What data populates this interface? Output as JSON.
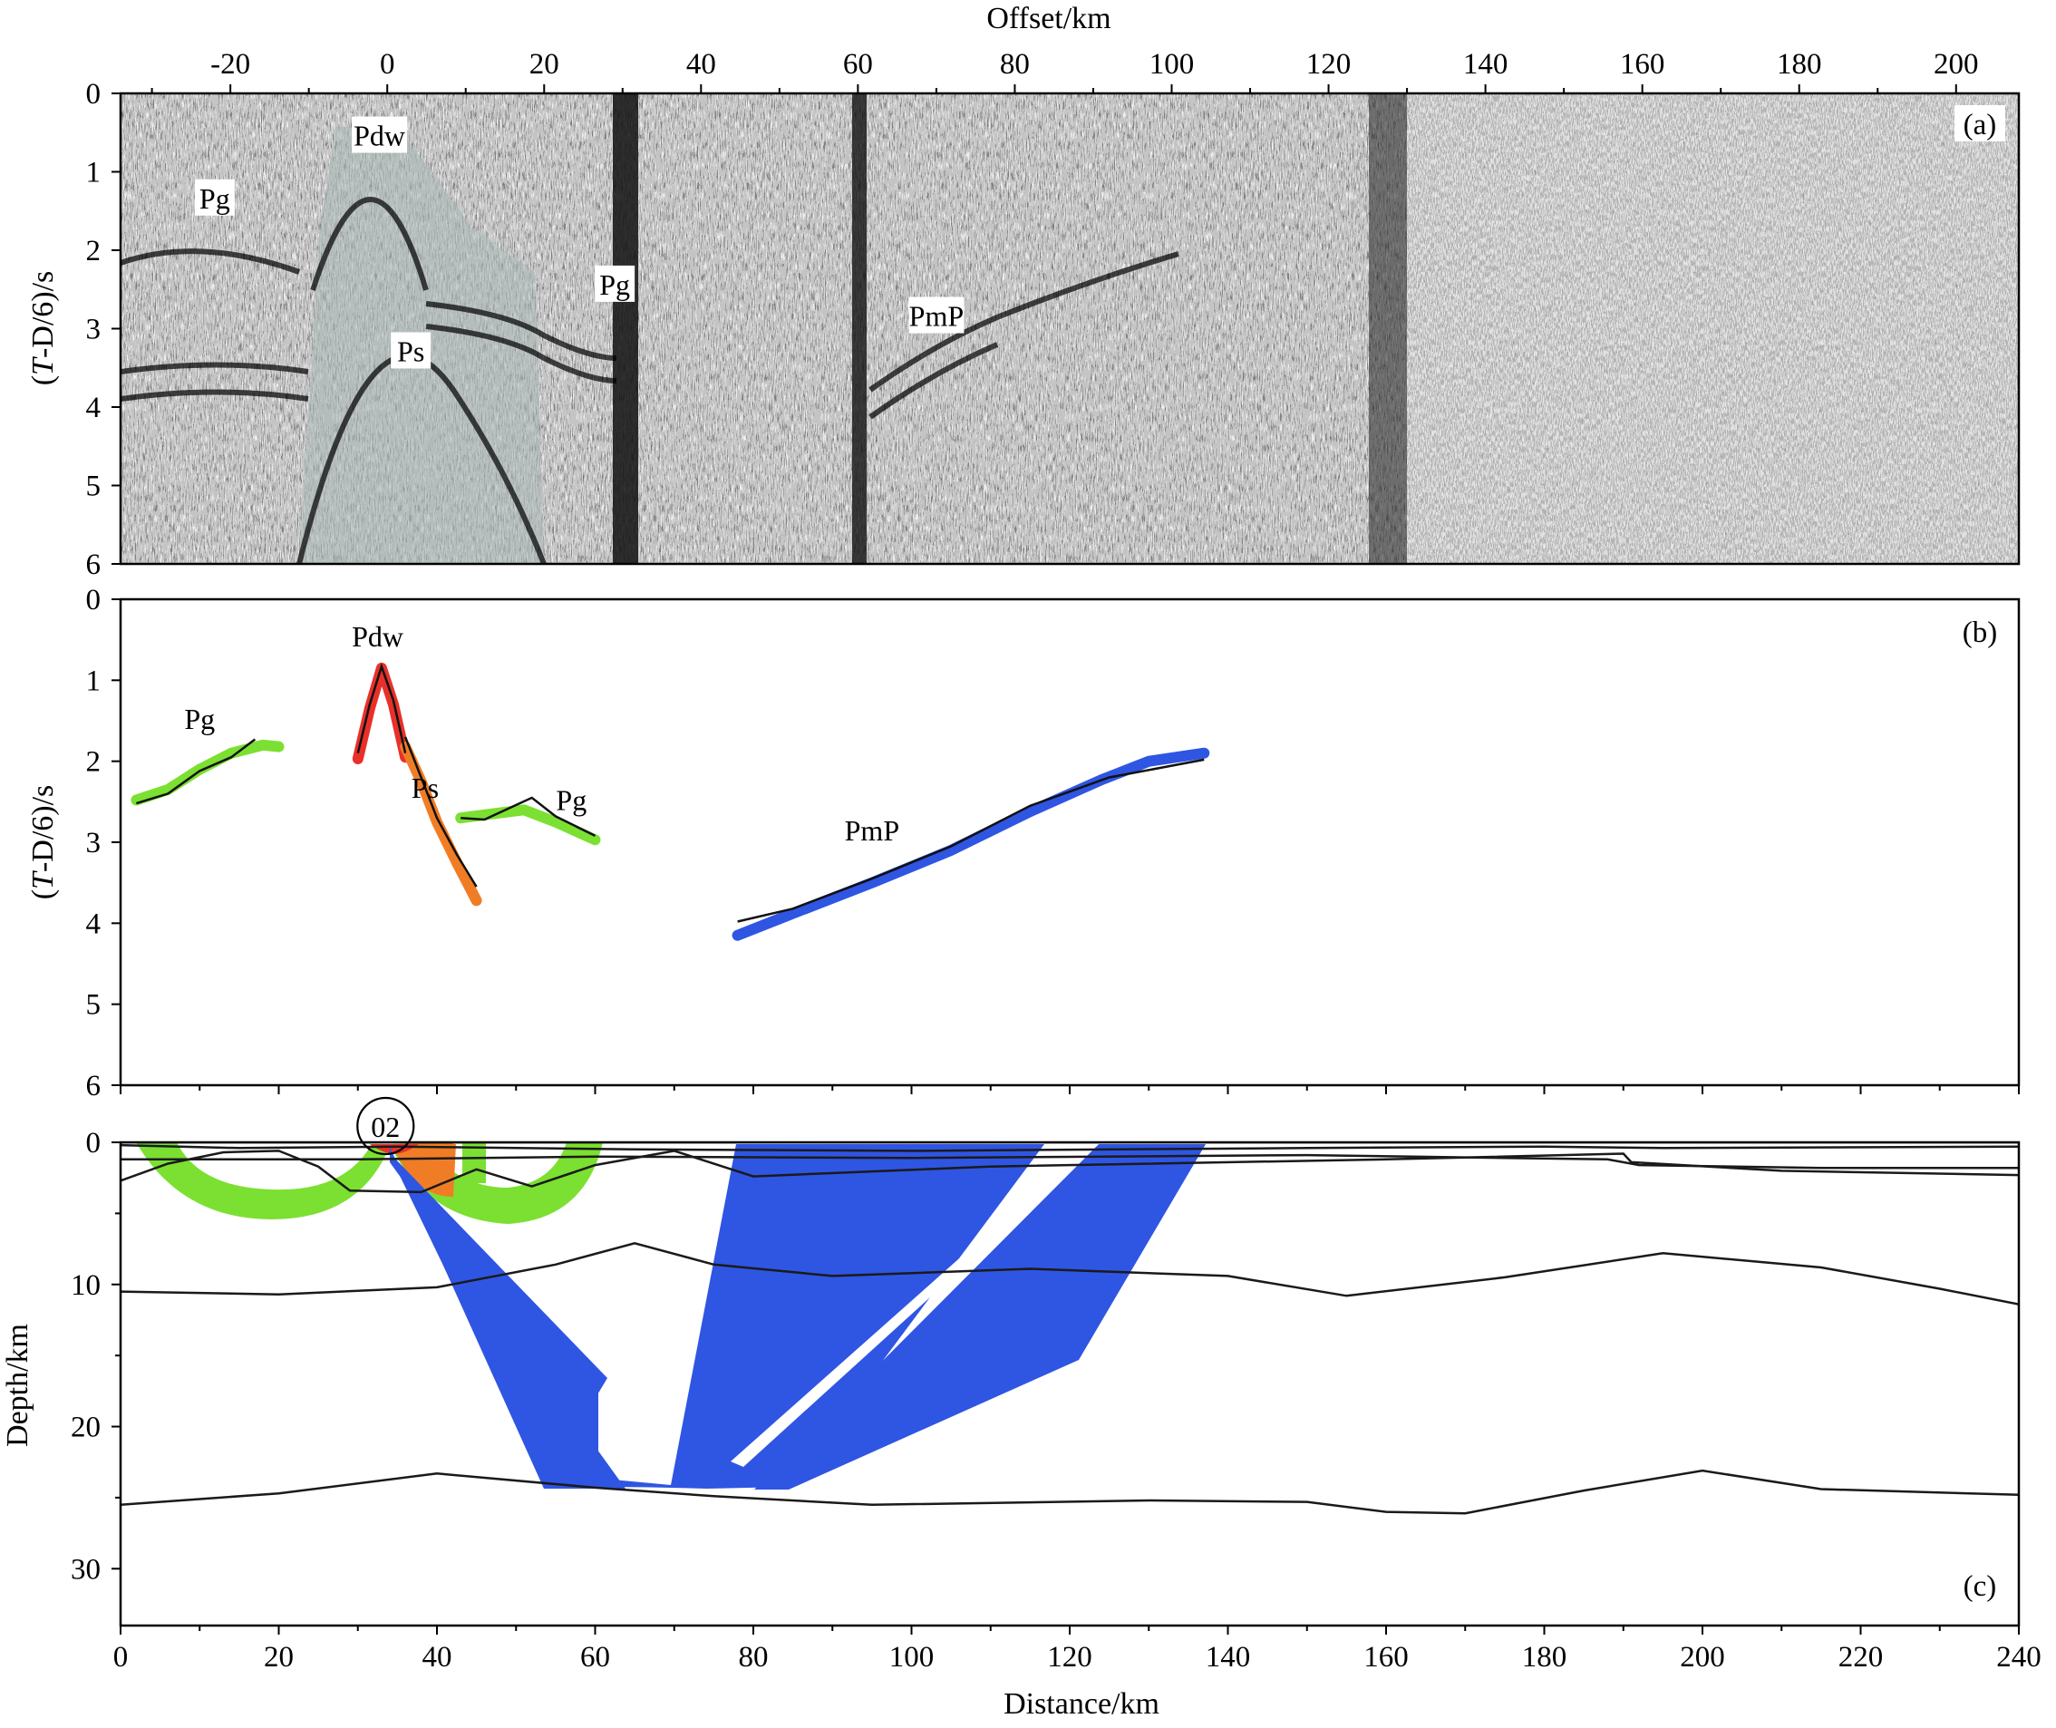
{
  "chart_data": [
    {
      "id": "a",
      "type": "heatmap",
      "panel_label": "(a)",
      "xlabel": "Offset/km",
      "ylabel_prefix": "(",
      "ylabel_italic": "T",
      "ylabel_suffix": "-D/6)/s",
      "xlim": [
        -34,
        208
      ],
      "ylim": [
        0,
        6
      ],
      "x_ticks": [
        -20,
        0,
        20,
        40,
        60,
        80,
        100,
        120,
        140,
        160,
        180,
        200
      ],
      "y_ticks": [
        0,
        1,
        2,
        3,
        4,
        5,
        6
      ],
      "phase_labels": [
        {
          "text": "Pdw",
          "x": -1,
          "t": 0.55
        },
        {
          "text": "Pg",
          "x": -22,
          "t": 1.35
        },
        {
          "text": "Ps",
          "x": 3,
          "t": 3.3
        },
        {
          "text": "Pg",
          "x": 29,
          "t": 2.45
        },
        {
          "text": "PmP",
          "x": 70,
          "t": 2.85
        }
      ]
    },
    {
      "id": "b",
      "type": "line",
      "panel_label": "(b)",
      "ylabel_prefix": "(",
      "ylabel_italic": "T",
      "ylabel_suffix": "-D/6)/s",
      "xlim": [
        0,
        240
      ],
      "ylim": [
        0,
        6
      ],
      "y_ticks": [
        0,
        1,
        2,
        3,
        4,
        5,
        6
      ],
      "colors": {
        "Pg": "#7be031",
        "Pdw": "#e8302a",
        "Ps": "#f07d25",
        "PmP": "#2f55e3",
        "calc": "#111111"
      },
      "series": [
        {
          "phase": "Pg",
          "points": [
            [
              2,
              2.48
            ],
            [
              6,
              2.35
            ],
            [
              10,
              2.1
            ],
            [
              14,
              1.9
            ],
            [
              18,
              1.8
            ],
            [
              20,
              1.82
            ]
          ]
        },
        {
          "phase": "Pg",
          "points": [
            [
              43,
              2.7
            ],
            [
              47,
              2.65
            ],
            [
              51,
              2.6
            ],
            [
              55,
              2.75
            ],
            [
              60,
              2.97
            ]
          ]
        },
        {
          "phase": "Pdw",
          "points": [
            [
              30,
              1.97
            ],
            [
              31.5,
              1.35
            ],
            [
              33,
              0.85
            ],
            [
              34.5,
              1.3
            ],
            [
              36,
              1.95
            ]
          ]
        },
        {
          "phase": "Ps",
          "points": [
            [
              36,
              1.82
            ],
            [
              38,
              2.25
            ],
            [
              40,
              2.75
            ],
            [
              42.5,
              3.25
            ],
            [
              45,
              3.72
            ]
          ]
        },
        {
          "phase": "PmP",
          "points": [
            [
              78,
              4.15
            ],
            [
              85,
              3.88
            ],
            [
              95,
              3.5
            ],
            [
              105,
              3.1
            ],
            [
              115,
              2.62
            ],
            [
              124,
              2.23
            ],
            [
              130,
              2.0
            ],
            [
              137,
              1.9
            ]
          ]
        }
      ],
      "calc_curves": [
        [
          [
            2,
            2.52
          ],
          [
            6,
            2.4
          ],
          [
            10,
            2.12
          ],
          [
            14,
            1.95
          ],
          [
            17,
            1.73
          ]
        ],
        [
          [
            30,
            1.9
          ],
          [
            31.5,
            1.3
          ],
          [
            33,
            0.83
          ],
          [
            34.5,
            1.25
          ],
          [
            36,
            1.9
          ]
        ],
        [
          [
            36,
            1.7
          ],
          [
            38,
            2.2
          ],
          [
            40,
            2.7
          ],
          [
            42.5,
            3.15
          ],
          [
            45,
            3.55
          ]
        ],
        [
          [
            43,
            2.7
          ],
          [
            46,
            2.72
          ],
          [
            52,
            2.45
          ],
          [
            55,
            2.68
          ],
          [
            60,
            2.92
          ]
        ],
        [
          [
            78,
            3.98
          ],
          [
            85,
            3.82
          ],
          [
            95,
            3.45
          ],
          [
            105,
            3.05
          ],
          [
            115,
            2.55
          ],
          [
            125,
            2.2
          ],
          [
            137,
            1.98
          ]
        ]
      ],
      "phase_labels": [
        {
          "text": "Pdw",
          "x": 32.5,
          "t": 0.58
        },
        {
          "text": "Pg",
          "x": 10,
          "t": 1.6
        },
        {
          "text": "Ps",
          "x": 38.5,
          "t": 2.45
        },
        {
          "text": "Pg",
          "x": 57,
          "t": 2.6
        },
        {
          "text": "PmP",
          "x": 95,
          "t": 2.98
        }
      ]
    },
    {
      "id": "c",
      "type": "line",
      "panel_label": "(c)",
      "xlabel": "Distance/km",
      "ylabel": "Depth/km",
      "xlim": [
        0,
        240
      ],
      "ylim": [
        0,
        34
      ],
      "x_ticks": [
        0,
        20,
        40,
        60,
        80,
        100,
        120,
        140,
        160,
        180,
        200,
        220,
        240
      ],
      "y_ticks": [
        0,
        10,
        20,
        30
      ],
      "station_label": "02",
      "station_x": 33.5,
      "colors": {
        "Pg": "#7be031",
        "Pdw": "#e8302a",
        "Ps": "#f07d25",
        "PmP": "#2f55e3",
        "boundary": "#1a1a1a"
      },
      "boundaries": [
        [
          [
            0,
            0.0
          ],
          [
            240,
            0.0
          ]
        ],
        [
          [
            0,
            0.2
          ],
          [
            15,
            0.4
          ],
          [
            35,
            0.3
          ],
          [
            65,
            0.5
          ],
          [
            100,
            0.6
          ],
          [
            150,
            0.4
          ],
          [
            180,
            0.3
          ],
          [
            195,
            0.4
          ],
          [
            240,
            0.3
          ]
        ],
        [
          [
            0,
            2.7
          ],
          [
            6,
            1.5
          ],
          [
            13,
            0.7
          ],
          [
            20,
            0.6
          ],
          [
            25,
            1.7
          ],
          [
            29,
            3.4
          ],
          [
            38,
            3.5
          ],
          [
            45,
            1.9
          ],
          [
            52,
            3.1
          ],
          [
            60,
            1.6
          ],
          [
            70,
            0.6
          ],
          [
            80,
            2.4
          ],
          [
            110,
            1.7
          ],
          [
            160,
            1.2
          ],
          [
            190,
            0.8
          ],
          [
            191,
            1.4
          ],
          [
            210,
            2.0
          ],
          [
            240,
            2.3
          ]
        ],
        [
          [
            0,
            1.2
          ],
          [
            30,
            1.2
          ],
          [
            60,
            1.0
          ],
          [
            100,
            1.1
          ],
          [
            150,
            0.9
          ],
          [
            188,
            1.2
          ],
          [
            192,
            1.6
          ],
          [
            215,
            1.8
          ],
          [
            240,
            1.8
          ]
        ],
        [
          [
            0,
            10.5
          ],
          [
            20,
            10.7
          ],
          [
            40,
            10.2
          ],
          [
            55,
            8.6
          ],
          [
            65,
            7.1
          ],
          [
            75,
            8.6
          ],
          [
            90,
            9.4
          ],
          [
            115,
            8.9
          ],
          [
            140,
            9.4
          ],
          [
            155,
            10.8
          ],
          [
            175,
            9.5
          ],
          [
            195,
            7.8
          ],
          [
            215,
            8.8
          ],
          [
            230,
            10.3
          ],
          [
            240,
            11.4
          ]
        ],
        [
          [
            0,
            25.5
          ],
          [
            20,
            24.7
          ],
          [
            40,
            23.3
          ],
          [
            60,
            24.3
          ],
          [
            75,
            24.9
          ],
          [
            95,
            25.5
          ],
          [
            130,
            25.2
          ],
          [
            150,
            25.3
          ],
          [
            160,
            26.0
          ],
          [
            170,
            26.1
          ],
          [
            185,
            24.5
          ],
          [
            200,
            23.1
          ],
          [
            215,
            24.4
          ],
          [
            240,
            24.8
          ]
        ]
      ]
    }
  ]
}
